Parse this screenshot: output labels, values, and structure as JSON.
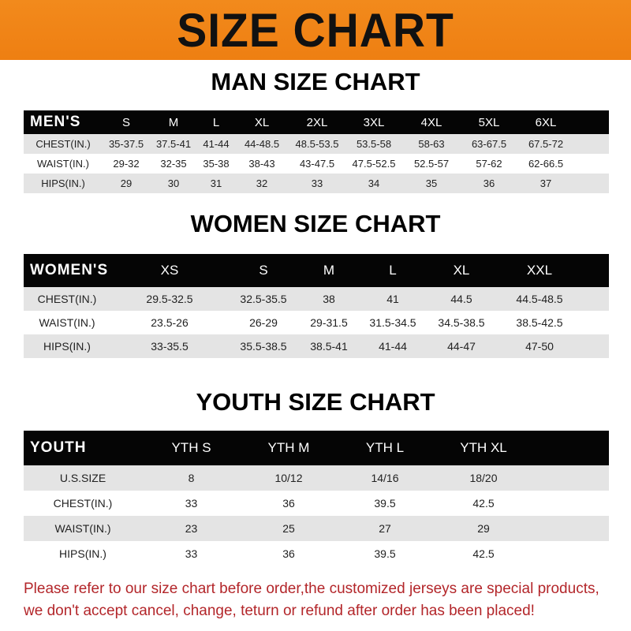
{
  "banner_title": "SIZE CHART",
  "men": {
    "title": "MAN SIZE CHART",
    "header": [
      "MEN'S",
      "S",
      "M",
      "L",
      "XL",
      "2XL",
      "3XL",
      "4XL",
      "5XL",
      "6XL"
    ],
    "rows": [
      [
        "CHEST(IN.)",
        "35-37.5",
        "37.5-41",
        "41-44",
        "44-48.5",
        "48.5-53.5",
        "53.5-58",
        "58-63",
        "63-67.5",
        "67.5-72"
      ],
      [
        "WAIST(IN.)",
        "29-32",
        "32-35",
        "35-38",
        "38-43",
        "43-47.5",
        "47.5-52.5",
        "52.5-57",
        "57-62",
        "62-66.5"
      ],
      [
        "HIPS(IN.)",
        "29",
        "30",
        "31",
        "32",
        "33",
        "34",
        "35",
        "36",
        "37"
      ]
    ]
  },
  "women": {
    "title": "WOMEN SIZE CHART",
    "header": [
      "WOMEN'S",
      "XS",
      "S",
      "M",
      "L",
      "XL",
      "XXL"
    ],
    "rows": [
      [
        "CHEST(IN.)",
        "29.5-32.5",
        "32.5-35.5",
        "38",
        "41",
        "44.5",
        "44.5-48.5"
      ],
      [
        "WAIST(IN.)",
        "23.5-26",
        "26-29",
        "29-31.5",
        "31.5-34.5",
        "34.5-38.5",
        "38.5-42.5"
      ],
      [
        "HIPS(IN.)",
        "33-35.5",
        "35.5-38.5",
        "38.5-41",
        "41-44",
        "44-47",
        "47-50"
      ]
    ]
  },
  "youth": {
    "title": "YOUTH SIZE CHART",
    "header": [
      "YOUTH",
      "YTH S",
      "YTH M",
      "YTH L",
      "YTH XL"
    ],
    "rows": [
      [
        "U.S.SIZE",
        "8",
        "10/12",
        "14/16",
        "18/20"
      ],
      [
        "CHEST(IN.)",
        "33",
        "36",
        "39.5",
        "42.5"
      ],
      [
        "WAIST(IN.)",
        "23",
        "25",
        "27",
        "29"
      ],
      [
        "HIPS(IN.)",
        "33",
        "36",
        "39.5",
        "42.5"
      ]
    ]
  },
  "footer": {
    "line1": "Please refer to our size chart before order,the customized jerseys are special products,",
    "line2": "we don't accept cancel, change, teturn or refund after order has been placed!"
  },
  "colors": {
    "banner": "#f28a1c",
    "header_row": "#050505",
    "stripe": "#e4e4e4",
    "footer_text": "#b3262a"
  }
}
